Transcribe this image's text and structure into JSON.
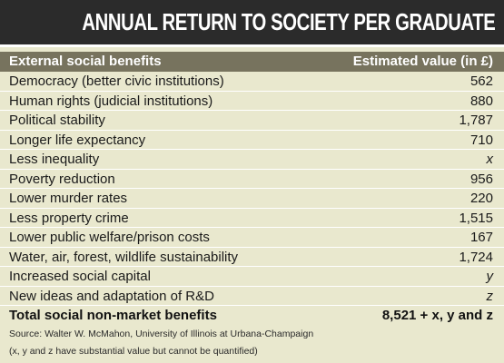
{
  "title": "ANNUAL RETURN TO SOCIETY PER GRADUATE",
  "columns": {
    "benefit": "External social benefits",
    "value": "Estimated value (in £)"
  },
  "rows": [
    {
      "label": "Democracy (better civic institutions)",
      "value": "562"
    },
    {
      "label": "Human rights (judicial institutions)",
      "value": "880"
    },
    {
      "label": "Political stability",
      "value": "1,787"
    },
    {
      "label": "Longer life expectancy",
      "value": "710"
    },
    {
      "label": "Less inequality",
      "value": "x"
    },
    {
      "label": "Poverty reduction",
      "value": "956"
    },
    {
      "label": "Lower murder rates",
      "value": "220"
    },
    {
      "label": "Less property crime",
      "value": "1,515"
    },
    {
      "label": "Lower public welfare/prison costs",
      "value": "167"
    },
    {
      "label": "Water, air, forest, wildlife sustainability",
      "value": "1,724"
    },
    {
      "label": "Increased social capital",
      "value": "y"
    },
    {
      "label": "New ideas and adaptation of R&D",
      "value": "z"
    }
  ],
  "total": {
    "label": "Total social non-market benefits",
    "value": "8,521 + x, y and z"
  },
  "source": "Source: Walter W. McMahon, University of Illinois at Urbana-Champaign",
  "footnote": "(x, y and z have substantial value but cannot be quantified)",
  "colors": {
    "header_bg": "#2b2b2b",
    "column_header_bg": "#77735e",
    "table_bg": "#e9e8ce"
  }
}
